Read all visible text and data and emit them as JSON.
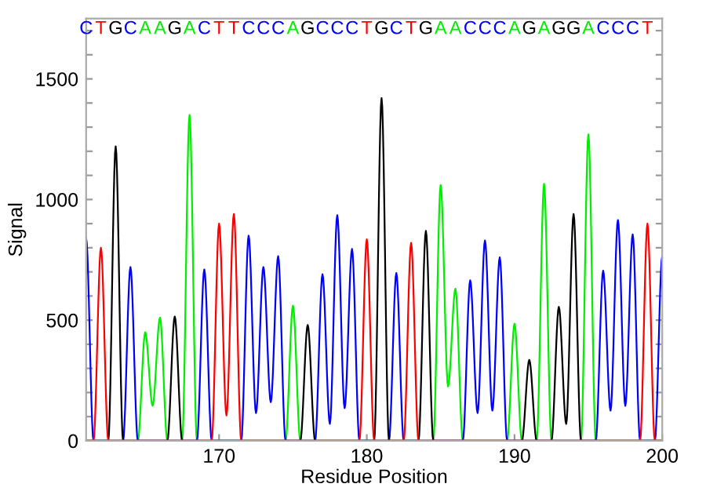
{
  "chart_data": {
    "type": "line",
    "xlabel": "Residue Position",
    "ylabel": "Signal",
    "xlim": [
      161,
      200
    ],
    "xticks": [
      170,
      180,
      190,
      200
    ],
    "ylim": [
      0,
      1750
    ],
    "yticks": [
      0,
      {
        "value": 100,
        "label": null
      },
      {
        "value": 200,
        "label": null
      },
      {
        "value": 300,
        "label": null
      },
      {
        "value": 400,
        "label": null
      },
      500,
      {
        "value": 600,
        "label": null
      },
      {
        "value": 700,
        "label": null
      },
      {
        "value": 800,
        "label": null
      },
      {
        "value": 900,
        "label": null
      },
      1000,
      {
        "value": 1100,
        "label": null
      },
      {
        "value": 1200,
        "label": null
      },
      {
        "value": 1300,
        "label": null
      },
      {
        "value": 1400,
        "label": null
      },
      1500,
      {
        "value": 1600,
        "label": null
      },
      {
        "value": 1700,
        "label": null
      }
    ],
    "grid": false,
    "legend": false,
    "marker": "none",
    "line_style": "solid",
    "series": [
      {
        "color": "#00ee00",
        "x": [
          161,
          164.5,
          165,
          165.5,
          166,
          166.5,
          167.5,
          168,
          168.5,
          174.5,
          175,
          175.5,
          184.5,
          185,
          185.5,
          186,
          186.5,
          189.5,
          190,
          190.5,
          191.5,
          192,
          192.5,
          194.5,
          195,
          195.5,
          200
        ],
        "values": [
          0,
          0,
          450,
          145,
          510,
          0,
          0,
          1350,
          0,
          0,
          560,
          0,
          0,
          1060,
          225,
          630,
          0,
          0,
          485,
          0,
          0,
          1065,
          0,
          0,
          1270,
          0,
          0
        ]
      },
      {
        "color": "#0000ff",
        "x": [
          161,
          161.5,
          163.5,
          164,
          164.5,
          168.5,
          169,
          169.5,
          171.5,
          172,
          172.5,
          173,
          173.5,
          174,
          174.5,
          176.5,
          177,
          177.5,
          178,
          178.5,
          179,
          179.5,
          181.5,
          182,
          182.5,
          186.5,
          187,
          187.5,
          188,
          188.5,
          189,
          189.5,
          195.5,
          196,
          196.5,
          197,
          197.5,
          198,
          198.5,
          199.5,
          200
        ],
        "values": [
          840,
          0,
          0,
          720,
          0,
          0,
          710,
          0,
          0,
          850,
          115,
          720,
          160,
          765,
          0,
          0,
          690,
          70,
          935,
          135,
          795,
          0,
          0,
          695,
          0,
          0,
          665,
          115,
          830,
          125,
          760,
          0,
          0,
          705,
          125,
          915,
          145,
          855,
          0,
          0,
          765
        ]
      },
      {
        "color": "#000000",
        "x": [
          161,
          162.5,
          163,
          163.5,
          166.5,
          167,
          167.5,
          175.5,
          176,
          176.5,
          180.5,
          181,
          181.5,
          183.5,
          184,
          184.5,
          190.5,
          191,
          191.5,
          192.5,
          193,
          193.5,
          194,
          194.5,
          200
        ],
        "values": [
          0,
          0,
          1220,
          0,
          0,
          515,
          0,
          0,
          480,
          0,
          0,
          1420,
          0,
          0,
          870,
          0,
          0,
          335,
          0,
          0,
          555,
          70,
          940,
          0,
          0
        ]
      },
      {
        "color": "#ff0000",
        "x": [
          161,
          161.5,
          162,
          162.5,
          169.5,
          170,
          170.5,
          171,
          171.5,
          179.5,
          180,
          180.5,
          182.5,
          183,
          183.5,
          198.5,
          199,
          199.5,
          200
        ],
        "values": [
          0,
          0,
          800,
          0,
          0,
          900,
          105,
          940,
          0,
          0,
          835,
          0,
          0,
          820,
          0,
          0,
          900,
          0,
          0
        ]
      }
    ],
    "annotations": [
      "C",
      "T",
      "G",
      "C",
      "A",
      "A",
      "G",
      "A",
      "C",
      "T",
      "T",
      "C",
      "C",
      "C",
      "A",
      "G",
      "C",
      "C",
      "C",
      "T",
      "G",
      "C",
      "T",
      "G",
      "A",
      "A",
      "C",
      "C",
      "C",
      "A",
      "G",
      "A",
      "G",
      "G",
      "A",
      "C",
      "C",
      "C",
      "T"
    ]
  }
}
